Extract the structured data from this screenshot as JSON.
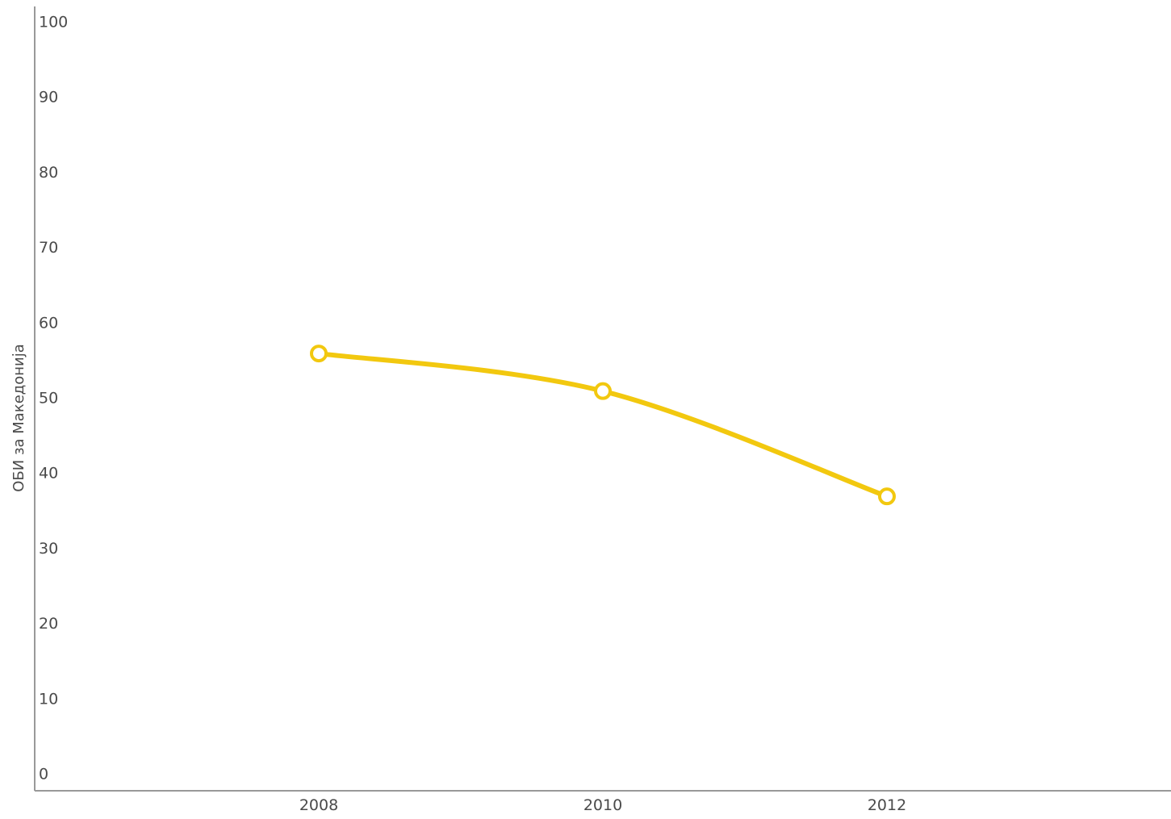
{
  "colors": {
    "series": "#f2c80f",
    "axis": "#999999",
    "text": "#4a4a4a",
    "marker_fill": "#ffffff"
  },
  "chart_data": {
    "type": "line",
    "title": "",
    "xlabel": "",
    "ylabel": "ОБИ за Македонија",
    "x": [
      2008,
      2010,
      2012
    ],
    "xlim": [
      2006,
      2014
    ],
    "ylim": [
      0,
      100
    ],
    "yticks": [
      0,
      10,
      20,
      30,
      40,
      50,
      60,
      70,
      80,
      90,
      100
    ],
    "xticks": [
      2008,
      2010,
      2012
    ],
    "grid": false,
    "legend": "none",
    "series": [
      {
        "values": [
          56,
          51,
          37
        ]
      }
    ]
  }
}
